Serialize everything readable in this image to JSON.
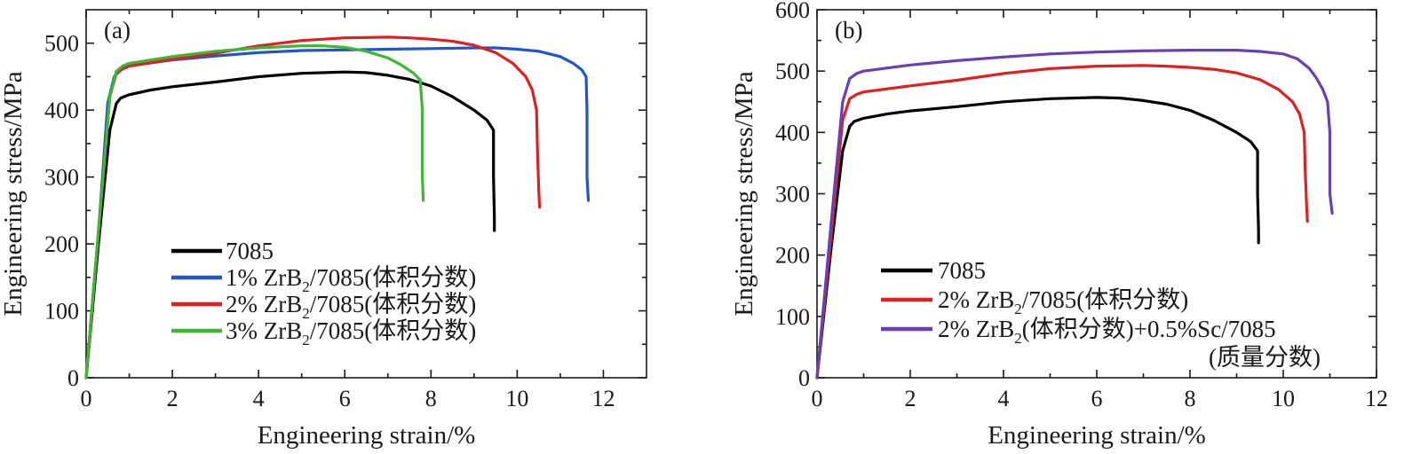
{
  "chart_data": [
    {
      "type": "line",
      "panel": "(a)",
      "xlabel": "Engineering strain/%",
      "ylabel": "Engineering stress/MPa",
      "xlim": [
        0,
        13
      ],
      "ylim": [
        0,
        550
      ],
      "xticks": [
        0,
        2,
        4,
        6,
        8,
        10,
        12
      ],
      "yticks": [
        0,
        100,
        200,
        300,
        400,
        500
      ],
      "legend_position": "bottom-left",
      "series": [
        {
          "name": "7085",
          "color": "#000000",
          "x": [
            0,
            0.3,
            0.55,
            0.7,
            0.8,
            1.0,
            1.5,
            2,
            3,
            4,
            5,
            6,
            6.5,
            7,
            7.5,
            8,
            8.5,
            9,
            9.3,
            9.45,
            9.45,
            9.47,
            9.47
          ],
          "y": [
            0,
            210,
            370,
            410,
            418,
            423,
            430,
            435,
            442,
            450,
            455,
            457,
            456,
            452,
            446,
            436,
            420,
            400,
            385,
            370,
            300,
            240,
            220
          ]
        },
        {
          "name": "1% ZrB2/7085",
          "label_prefix": "1% ZrB",
          "label_sub": "2",
          "label_suffix": "/7085(体积分数)",
          "color": "#2255c8",
          "x": [
            0,
            0.3,
            0.5,
            0.65,
            0.8,
            1.0,
            2,
            3,
            4,
            5,
            6,
            7,
            8,
            9,
            9.5,
            10,
            10.5,
            11,
            11.3,
            11.5,
            11.6,
            11.62,
            11.62,
            11.65
          ],
          "y": [
            0,
            230,
            410,
            450,
            460,
            466,
            475,
            481,
            486,
            489,
            490,
            491,
            492,
            493,
            493,
            491,
            488,
            480,
            470,
            460,
            450,
            400,
            300,
            265
          ]
        },
        {
          "name": "2% ZrB2/7085",
          "label_prefix": "2% ZrB",
          "label_sub": "2",
          "label_suffix": "/7085(体积分数)",
          "color": "#e02020",
          "x": [
            0,
            0.3,
            0.55,
            0.7,
            0.85,
            1.0,
            2,
            3,
            4,
            5,
            6,
            7,
            7.5,
            8,
            8.5,
            9,
            9.5,
            9.9,
            10.2,
            10.35,
            10.45,
            10.47,
            10.5,
            10.52
          ],
          "y": [
            0,
            230,
            420,
            455,
            462,
            466,
            476,
            485,
            496,
            504,
            508,
            509,
            508,
            506,
            503,
            497,
            486,
            470,
            450,
            430,
            400,
            340,
            280,
            255
          ]
        },
        {
          "name": "3% ZrB2/7085",
          "label_prefix": "3% ZrB",
          "label_sub": "2",
          "label_suffix": "/7085(体积分数)",
          "color": "#3cb832",
          "x": [
            0,
            0.3,
            0.55,
            0.7,
            0.85,
            1.0,
            2,
            3,
            4,
            5,
            5.5,
            6,
            6.5,
            7,
            7.3,
            7.6,
            7.75,
            7.8,
            7.8,
            7.82
          ],
          "y": [
            0,
            230,
            420,
            458,
            466,
            470,
            480,
            488,
            493,
            496,
            496,
            494,
            488,
            478,
            468,
            455,
            445,
            400,
            300,
            265
          ]
        }
      ]
    },
    {
      "type": "line",
      "panel": "(b)",
      "xlabel": "Engineering strain/%",
      "ylabel": "Engineering stress/MPa",
      "xlim": [
        0,
        12
      ],
      "ylim": [
        0,
        600
      ],
      "xticks": [
        0,
        2,
        4,
        6,
        8,
        10,
        12
      ],
      "yticks": [
        0,
        100,
        200,
        300,
        400,
        500,
        600
      ],
      "legend_position": "bottom-left",
      "series": [
        {
          "name": "7085",
          "color": "#000000",
          "x": [
            0,
            0.3,
            0.55,
            0.7,
            0.8,
            1.0,
            1.5,
            2,
            3,
            4,
            5,
            6,
            6.5,
            7,
            7.5,
            8,
            8.5,
            9,
            9.3,
            9.45,
            9.45,
            9.47,
            9.47
          ],
          "y": [
            0,
            210,
            370,
            410,
            418,
            423,
            430,
            435,
            442,
            450,
            455,
            457,
            456,
            452,
            446,
            436,
            420,
            400,
            385,
            370,
            300,
            240,
            220
          ]
        },
        {
          "name": "2% ZrB2/7085",
          "label_prefix": "2% ZrB",
          "label_sub": "2",
          "label_suffix": "/7085(体积分数)",
          "color": "#e02020",
          "x": [
            0,
            0.3,
            0.55,
            0.7,
            0.85,
            1.0,
            2,
            3,
            4,
            5,
            6,
            7,
            7.5,
            8,
            8.5,
            9,
            9.5,
            9.9,
            10.2,
            10.35,
            10.45,
            10.47,
            10.5,
            10.52
          ],
          "y": [
            0,
            230,
            420,
            455,
            462,
            466,
            476,
            485,
            496,
            504,
            508,
            509,
            508,
            506,
            503,
            497,
            486,
            470,
            450,
            430,
            400,
            340,
            280,
            255
          ]
        },
        {
          "name": "2% ZrB2(体积分数)+0.5%Sc/7085(质量分数)",
          "label_prefix": "2% ZrB",
          "label_sub": "2",
          "label_suffix": "(体积分数)+0.5%Sc/7085",
          "label_line2": "(质量分数)",
          "color": "#6a3fb5",
          "x": [
            0,
            0.3,
            0.55,
            0.7,
            0.85,
            1.0,
            2,
            3,
            4,
            5,
            6,
            7,
            8,
            9,
            9.5,
            10,
            10.3,
            10.55,
            10.7,
            10.85,
            10.95,
            11.0,
            11.0,
            11.05
          ],
          "y": [
            0,
            250,
            450,
            488,
            496,
            500,
            510,
            517,
            523,
            528,
            531,
            533,
            534,
            534,
            532,
            528,
            520,
            505,
            490,
            470,
            450,
            400,
            300,
            268
          ]
        }
      ]
    }
  ]
}
